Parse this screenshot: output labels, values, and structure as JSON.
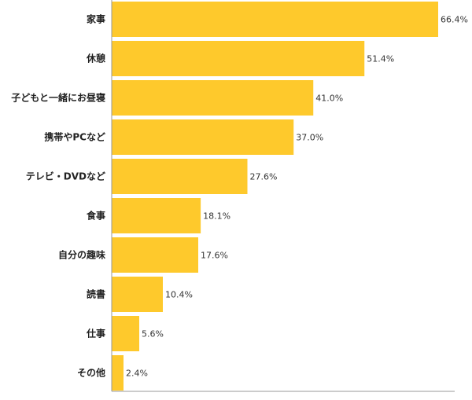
{
  "chart_data": {
    "type": "bar",
    "orientation": "horizontal",
    "categories": [
      "家事",
      "休憩",
      "子どもと一緒にお昼寝",
      "携帯やPCなど",
      "テレビ・DVDなど",
      "食事",
      "自分の趣味",
      "読書",
      "仕事",
      "その他"
    ],
    "values": [
      66.4,
      51.4,
      41.0,
      37.0,
      27.6,
      18.1,
      17.6,
      10.4,
      5.6,
      2.4
    ],
    "value_labels": [
      "66.4%",
      "51.4%",
      "41.0%",
      "37.0%",
      "27.6%",
      "18.1%",
      "17.6%",
      "10.4%",
      "5.6%",
      "2.4%"
    ],
    "title": "",
    "xlabel": "",
    "ylabel": "",
    "xlim": [
      0,
      70
    ],
    "grid": false,
    "legend": "none",
    "colors": {
      "bar": "#FEC92C",
      "axis": "#999999"
    }
  }
}
